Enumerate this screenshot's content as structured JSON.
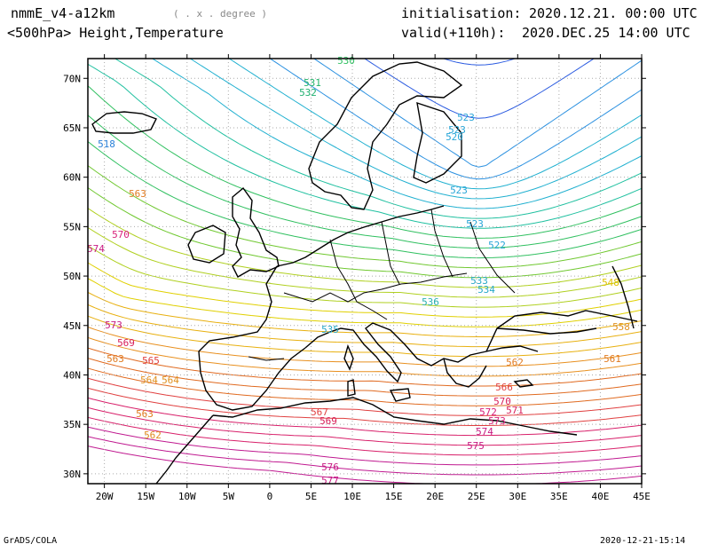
{
  "header": {
    "model": "nmmE_v4-a12km",
    "units_note": "( . x . degree )",
    "level_title": "<500hPa> Height,Temperature",
    "init_label": "initialisation:",
    "init_value": "2020.12.21.  00:00 UTC",
    "valid_label": "valid(+110h):",
    "valid_value": "2020.DEC.25 14:00 UTC"
  },
  "map": {
    "lat_ticks": [
      "70N",
      "65N",
      "60N",
      "55N",
      "50N",
      "45N",
      "40N",
      "35N",
      "30N"
    ],
    "lon_ticks": [
      "20W",
      "15W",
      "10W",
      "5W",
      "0",
      "5E",
      "10E",
      "15E",
      "20E",
      "25E",
      "30E",
      "35E",
      "40E",
      "45E"
    ],
    "contour_labels": [
      {
        "text": "530",
        "color": "#2fbf60"
      },
      {
        "text": "531",
        "color": "#22b36a"
      },
      {
        "text": "532",
        "color": "#1fb070"
      },
      {
        "text": "523",
        "color": "#2aa6d8"
      },
      {
        "text": "523",
        "color": "#2aa6d8"
      },
      {
        "text": "520",
        "color": "#2aa6d8"
      },
      {
        "text": "523",
        "color": "#2aa6d8"
      },
      {
        "text": "523",
        "color": "#2aa6d8"
      },
      {
        "text": "522",
        "color": "#2aa6d8"
      },
      {
        "text": "518",
        "color": "#2a80d8"
      },
      {
        "text": "563",
        "color": "#e07a20"
      },
      {
        "text": "570",
        "color": "#d8207a"
      },
      {
        "text": "574",
        "color": "#c81a82"
      },
      {
        "text": "573",
        "color": "#c81a82"
      },
      {
        "text": "569",
        "color": "#d8205a"
      },
      {
        "text": "565",
        "color": "#e04040"
      },
      {
        "text": "563",
        "color": "#e07a20"
      },
      {
        "text": "564",
        "color": "#e0901f"
      },
      {
        "text": "564",
        "color": "#e0901f"
      },
      {
        "text": "563",
        "color": "#e07a20"
      },
      {
        "text": "562",
        "color": "#e08a20"
      },
      {
        "text": "535",
        "color": "#28a8c8"
      },
      {
        "text": "536",
        "color": "#28b0b0"
      },
      {
        "text": "534",
        "color": "#28a8c8"
      },
      {
        "text": "533",
        "color": "#28a8c8"
      },
      {
        "text": "548",
        "color": "#e0c000"
      },
      {
        "text": "558",
        "color": "#e09020"
      },
      {
        "text": "561",
        "color": "#e07a20"
      },
      {
        "text": "562",
        "color": "#e07a20"
      },
      {
        "text": "566",
        "color": "#e04040"
      },
      {
        "text": "570",
        "color": "#d8205a"
      },
      {
        "text": "571",
        "color": "#d8205a"
      },
      {
        "text": "572",
        "color": "#d8207a"
      },
      {
        "text": "573",
        "color": "#d8207a"
      },
      {
        "text": "574",
        "color": "#c81a82"
      },
      {
        "text": "575",
        "color": "#c81a82"
      },
      {
        "text": "576",
        "color": "#c81a82"
      },
      {
        "text": "577",
        "color": "#c81a82"
      },
      {
        "text": "569",
        "color": "#d8205a"
      },
      {
        "text": "567",
        "color": "#e04040"
      }
    ]
  },
  "footer": {
    "left": "GrADS/COLA",
    "right": "2020-12-21-15:14"
  }
}
